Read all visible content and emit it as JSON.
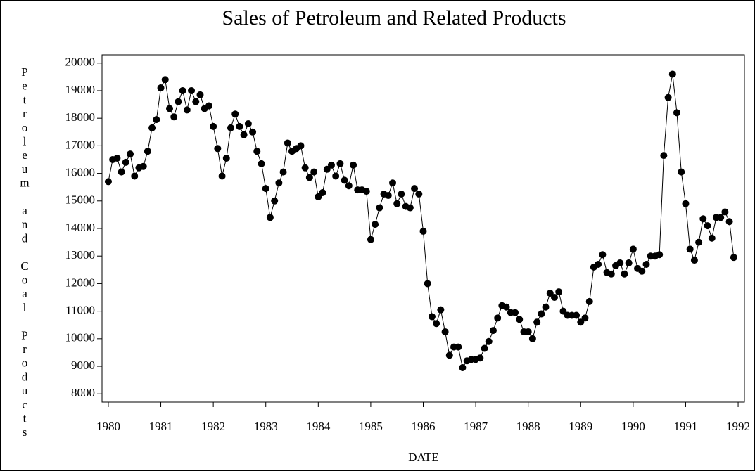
{
  "chart_data": {
    "type": "line",
    "title": "Sales of Petroleum and Related Products",
    "x_label": "DATE",
    "y_label": "Petroleum and Coal Products",
    "x": [
      1980,
      1980.083,
      1980.167,
      1980.25,
      1980.333,
      1980.417,
      1980.5,
      1980.583,
      1980.667,
      1980.75,
      1980.833,
      1980.917,
      1981,
      1981.083,
      1981.167,
      1981.25,
      1981.333,
      1981.417,
      1981.5,
      1981.583,
      1981.667,
      1981.75,
      1981.833,
      1981.917,
      1982,
      1982.083,
      1982.167,
      1982.25,
      1982.333,
      1982.417,
      1982.5,
      1982.583,
      1982.667,
      1982.75,
      1982.833,
      1982.917,
      1983,
      1983.083,
      1983.167,
      1983.25,
      1983.333,
      1983.417,
      1983.5,
      1983.583,
      1983.667,
      1983.75,
      1983.833,
      1983.917,
      1984,
      1984.083,
      1984.167,
      1984.25,
      1984.333,
      1984.417,
      1984.5,
      1984.583,
      1984.667,
      1984.75,
      1984.833,
      1984.917,
      1985,
      1985.083,
      1985.167,
      1985.25,
      1985.333,
      1985.417,
      1985.5,
      1985.583,
      1985.667,
      1985.75,
      1985.833,
      1985.917,
      1986,
      1986.083,
      1986.167,
      1986.25,
      1986.333,
      1986.417,
      1986.5,
      1986.583,
      1986.667,
      1986.75,
      1986.833,
      1986.917,
      1987,
      1987.083,
      1987.167,
      1987.25,
      1987.333,
      1987.417,
      1987.5,
      1987.583,
      1987.667,
      1987.75,
      1987.833,
      1987.917,
      1988,
      1988.083,
      1988.167,
      1988.25,
      1988.333,
      1988.417,
      1988.5,
      1988.583,
      1988.667,
      1988.75,
      1988.833,
      1988.917,
      1989,
      1989.083,
      1989.167,
      1989.25,
      1989.333,
      1989.417,
      1989.5,
      1989.583,
      1989.667,
      1989.75,
      1989.833,
      1989.917,
      1990,
      1990.083,
      1990.167,
      1990.25,
      1990.333,
      1990.417,
      1990.5,
      1990.583,
      1990.667,
      1990.75,
      1990.833,
      1990.917,
      1991,
      1991.083,
      1991.167,
      1991.25,
      1991.333,
      1991.417,
      1991.5,
      1991.583,
      1991.667,
      1991.75,
      1991.833,
      1991.917
    ],
    "values": [
      15700,
      16500,
      16550,
      16050,
      16400,
      16700,
      15900,
      16200,
      16250,
      16800,
      17650,
      17950,
      19100,
      19400,
      18350,
      18050,
      18600,
      19000,
      18300,
      19000,
      18600,
      18850,
      18350,
      18450,
      17700,
      16900,
      15900,
      16550,
      17650,
      18150,
      17700,
      17400,
      17800,
      17500,
      16800,
      16350,
      15450,
      14400,
      15000,
      15650,
      16050,
      17100,
      16800,
      16900,
      17000,
      16200,
      15850,
      16050,
      15150,
      15300,
      16150,
      16300,
      15900,
      16350,
      15750,
      15550,
      16300,
      15400,
      15400,
      15350,
      13600,
      14150,
      14750,
      15250,
      15200,
      15650,
      14900,
      15250,
      14800,
      14750,
      15450,
      15250,
      13900,
      12000,
      10800,
      10550,
      11050,
      10250,
      9400,
      9700,
      9700,
      8950,
      9200,
      9250,
      9250,
      9300,
      9650,
      9900,
      10300,
      10750,
      11200,
      11150,
      10950,
      10950,
      10700,
      10250,
      10250,
      10000,
      10600,
      10900,
      11150,
      11650,
      11500,
      11700,
      11000,
      10850,
      10850,
      10850,
      10600,
      10750,
      11350,
      12600,
      12700,
      13050,
      12400,
      12350,
      12650,
      12750,
      12350,
      12750,
      13250,
      12550,
      12450,
      12700,
      13000,
      13000,
      13050,
      16650,
      18750,
      19600,
      18200,
      16050,
      14900,
      13250,
      12850,
      13500,
      14350,
      14100,
      13650,
      14400,
      14400,
      14600,
      14250,
      12950
    ],
    "color": "#000000",
    "xlim": [
      1979.88,
      1992.12
    ],
    "xticks": [
      1980,
      1981,
      1982,
      1983,
      1984,
      1985,
      1986,
      1987,
      1988,
      1989,
      1990,
      1991,
      1992
    ],
    "ylim": [
      7700,
      20300
    ],
    "yticks": [
      8000,
      9000,
      10000,
      11000,
      12000,
      13000,
      14000,
      15000,
      16000,
      17000,
      18000,
      19000,
      20000
    ]
  }
}
